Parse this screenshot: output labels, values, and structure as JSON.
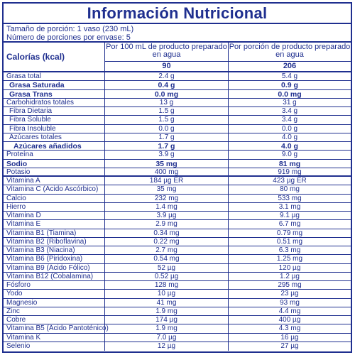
{
  "title": "Información Nutricional",
  "serving_size": "Tamaño de porción: 1 vaso (230 mL)",
  "servings_per_container": "Número de porciones por envase:  5",
  "header": {
    "label": "Calorías (kcal)",
    "col1": "Por 100 mL de producto preparado en agua",
    "col2": "Por porción de producto preparado en agua",
    "cal1": "90",
    "cal2": "206"
  },
  "rows": [
    {
      "name": "Grasa total",
      "a": "2.4 g",
      "b": "5.4 g",
      "style": ""
    },
    {
      "name": "Grasa Saturada",
      "a": "0.4 g",
      "b": "0.9 g",
      "style": "bold ind1"
    },
    {
      "name": "Grasa Trans",
      "a": "0.0 mg",
      "b": "0.0 mg",
      "style": "bold ind1"
    },
    {
      "name": "Carbohidratos totales",
      "a": "13 g",
      "b": "31 g",
      "style": ""
    },
    {
      "name": "Fibra Dietaria",
      "a": "1.5 g",
      "b": "3.4 g",
      "style": "ind1"
    },
    {
      "name": "Fibra Soluble",
      "a": "1.5 g",
      "b": "3.4 g",
      "style": "ind1"
    },
    {
      "name": "Fibra Insoluble",
      "a": "0.0 g",
      "b": "0.0 g",
      "style": "ind1"
    },
    {
      "name": "Azúcares totales",
      "a": "1.7 g",
      "b": "4.0 g",
      "style": "ind1"
    },
    {
      "name": "Azúcares añadidos",
      "a": "1.7 g",
      "b": "4.0 g",
      "style": "bold ind2"
    },
    {
      "name": "Proteína",
      "a": "3.9 g",
      "b": "9.0 g",
      "style": ""
    },
    {
      "name": "Sodio",
      "a": "35 mg",
      "b": "81 mg",
      "style": "bold"
    },
    {
      "name": "Potasio",
      "a": "400 mg",
      "b": "919 mg",
      "style": "thick"
    },
    {
      "name": "Vitamina A",
      "a": "184 µg ER",
      "b": "423 µg ER",
      "style": ""
    },
    {
      "name": "Vitamina C (Ácido Ascórbico)",
      "a": "35 mg",
      "b": "80 mg",
      "style": ""
    },
    {
      "name": "Calcio",
      "a": "232 mg",
      "b": "533 mg",
      "style": ""
    },
    {
      "name": "Hierro",
      "a": "1.4 mg",
      "b": "3.1 mg",
      "style": ""
    },
    {
      "name": "Vitamina D",
      "a": "3.9 µg",
      "b": "9.1 µg",
      "style": ""
    },
    {
      "name": "Vitamina E",
      "a": "2.9 mg",
      "b": "6.7 mg",
      "style": ""
    },
    {
      "name": "Vitamina B1 (Tiamina)",
      "a": "0.34 mg",
      "b": "0.79 mg",
      "style": ""
    },
    {
      "name": "Vitamina B2 (Riboflavina)",
      "a": "0.22 mg",
      "b": "0.51 mg",
      "style": ""
    },
    {
      "name": "Vitamina B3 (Niacina)",
      "a": "2.7 mg",
      "b": "6.3 mg",
      "style": ""
    },
    {
      "name": "Vitamina B6 (Piridoxina)",
      "a": "0.54 mg",
      "b": "1.25 mg",
      "style": ""
    },
    {
      "name": "Vitamina B9 (Ácido Fólico)",
      "a": "52 µg",
      "b": "120 µg",
      "style": ""
    },
    {
      "name": "Vitamina B12 (Cobalamina)",
      "a": "0.52 µg",
      "b": "1.2 µg",
      "style": ""
    },
    {
      "name": "Fósforo",
      "a": "128 mg",
      "b": "295 mg",
      "style": ""
    },
    {
      "name": "Yodo",
      "a": "10 µg",
      "b": "23 µg",
      "style": ""
    },
    {
      "name": "Magnesio",
      "a": "41 mg",
      "b": "93 mg",
      "style": ""
    },
    {
      "name": "Zinc",
      "a": "1.9 mg",
      "b": "4.4 mg",
      "style": ""
    },
    {
      "name": "Cobre",
      "a": "174 µg",
      "b": "400 µg",
      "style": ""
    },
    {
      "name": "Vitamina B5 (Ácido Pantoténico)",
      "a": "1.9 mg",
      "b": "4.3 mg",
      "style": ""
    },
    {
      "name": "Vitamina K",
      "a": "7.0 µg",
      "b": "16 µg",
      "style": ""
    },
    {
      "name": "Selenio",
      "a": "12 µg",
      "b": "27 µg",
      "style": ""
    }
  ]
}
